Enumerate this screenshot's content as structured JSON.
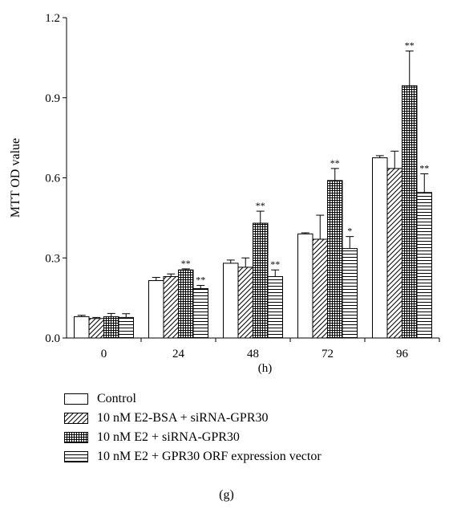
{
  "chart_data": {
    "type": "bar",
    "ylabel": "MTT OD value",
    "xlabel": "(h)",
    "categories": [
      "0",
      "24",
      "48",
      "72",
      "96"
    ],
    "ylim": [
      0,
      1.2
    ],
    "yticks": [
      "0.0",
      "0.3",
      "0.6",
      "0.9",
      "1.2"
    ],
    "grid": false,
    "legend_position": "bottom",
    "series": [
      {
        "name": "Control",
        "pattern": "plain",
        "values": [
          0.08,
          0.215,
          0.28,
          0.39,
          0.675
        ],
        "errors": [
          0.005,
          0.012,
          0.012,
          0.004,
          0.008
        ],
        "annotations": [
          "",
          "",
          "",
          "",
          ""
        ]
      },
      {
        "name": "10 nM E2-BSA + siRNA-GPR30",
        "pattern": "diagonal",
        "values": [
          0.073,
          0.23,
          0.265,
          0.37,
          0.635
        ],
        "errors": [
          0.004,
          0.01,
          0.035,
          0.09,
          0.065
        ],
        "annotations": [
          "",
          "",
          "",
          "",
          ""
        ]
      },
      {
        "name": "10 nM E2 + siRNA-GPR30",
        "pattern": "grid",
        "values": [
          0.08,
          0.255,
          0.43,
          0.59,
          0.945
        ],
        "errors": [
          0.012,
          0.004,
          0.045,
          0.045,
          0.13
        ],
        "annotations": [
          "",
          "**",
          "**",
          "**",
          "**"
        ]
      },
      {
        "name": "10 nM E2 + GPR30 ORF expression vector",
        "pattern": "horizontal",
        "values": [
          0.077,
          0.185,
          0.23,
          0.335,
          0.545
        ],
        "errors": [
          0.014,
          0.012,
          0.025,
          0.045,
          0.07
        ],
        "annotations": [
          "",
          "**",
          "**",
          "*",
          "**"
        ]
      }
    ]
  },
  "panel_label": "(g)"
}
